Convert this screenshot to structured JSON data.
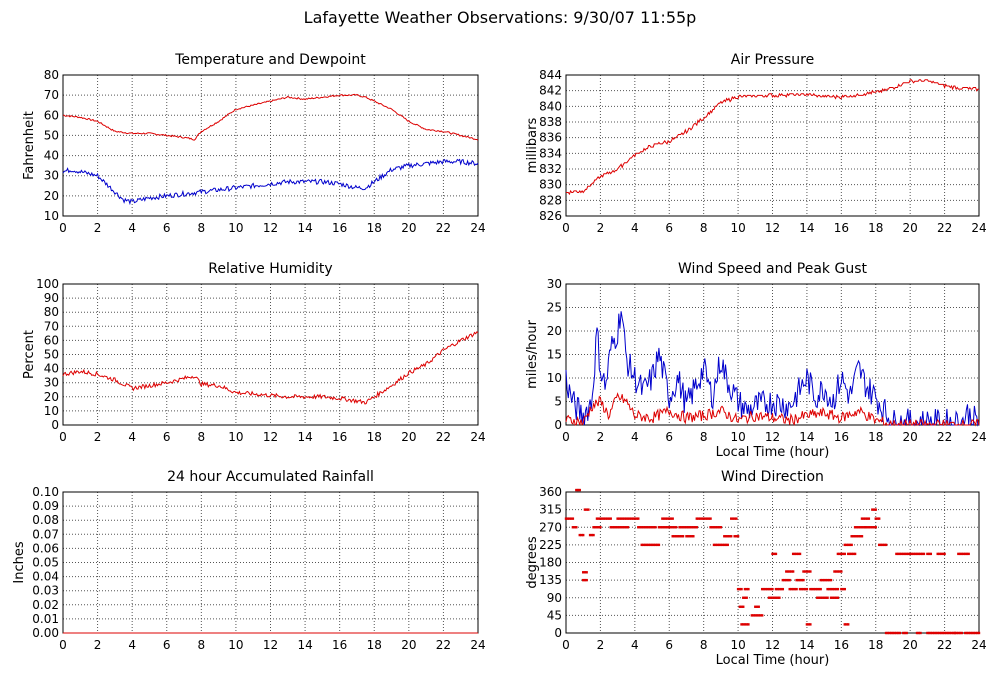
{
  "page": {
    "title": "Lafayette Weather Observations: 9/30/07 11:55p"
  },
  "chart_data": [
    {
      "id": "temp",
      "type": "line",
      "title": "Temperature and Dewpoint",
      "xlabel": "",
      "ylabel": "Fahrenheit",
      "xlim": [
        0,
        24
      ],
      "ylim": [
        10,
        80
      ],
      "xticks": [
        0,
        2,
        4,
        6,
        8,
        10,
        12,
        14,
        16,
        18,
        20,
        22,
        24
      ],
      "yticks": [
        10,
        20,
        30,
        40,
        50,
        60,
        70,
        80
      ],
      "grid": true,
      "series": [
        {
          "color": "#dd0000",
          "x": [
            0,
            1,
            2,
            3,
            4,
            5,
            6,
            7,
            7.6,
            8,
            9,
            10,
            11,
            12,
            13,
            14,
            15,
            16,
            17,
            17.5,
            18,
            19,
            20,
            21,
            22,
            23,
            24
          ],
          "y": [
            60,
            59,
            57,
            52,
            51,
            51,
            50,
            49,
            48,
            52,
            57,
            63,
            65,
            67,
            69,
            68,
            69,
            70,
            70,
            69,
            67,
            63,
            57,
            53,
            52,
            50,
            48
          ],
          "noise": 0.4
        },
        {
          "color": "#0000cc",
          "x": [
            0,
            0.5,
            1,
            1.5,
            2,
            3,
            3.5,
            4,
            5,
            6,
            7,
            8,
            9,
            10,
            11,
            12,
            13,
            14,
            15,
            16,
            17,
            17.5,
            18,
            19,
            20,
            21,
            22,
            23,
            24
          ],
          "y": [
            32,
            33,
            32,
            31,
            30,
            22,
            18,
            17,
            19,
            20,
            21,
            22,
            23,
            24,
            25,
            26,
            27,
            27,
            27,
            26,
            24,
            24,
            27,
            33,
            35,
            36,
            37,
            37,
            36
          ],
          "noise": 1.2
        }
      ]
    },
    {
      "id": "pressure",
      "type": "line",
      "title": "Air Pressure",
      "xlabel": "",
      "ylabel": "millibars",
      "xlim": [
        0,
        24
      ],
      "ylim": [
        826,
        844
      ],
      "xticks": [
        0,
        2,
        4,
        6,
        8,
        10,
        12,
        14,
        16,
        18,
        20,
        22,
        24
      ],
      "yticks": [
        826,
        828,
        830,
        832,
        834,
        836,
        838,
        840,
        842,
        844
      ],
      "grid": true,
      "series": [
        {
          "color": "#dd0000",
          "x": [
            0,
            1,
            2,
            3,
            4,
            5,
            6,
            7,
            8,
            9,
            10,
            11,
            12,
            13,
            14,
            15,
            16,
            17,
            18,
            19,
            20,
            21,
            22,
            23,
            24
          ],
          "y": [
            829,
            829.2,
            831,
            832,
            833.8,
            835,
            835.5,
            836.8,
            838.5,
            840.5,
            841.2,
            841.3,
            841.4,
            841.5,
            841.5,
            841.3,
            841.2,
            841.5,
            841.8,
            842.4,
            843.2,
            843.3,
            842.6,
            842.3,
            842.2
          ],
          "noise": 0.2,
          "step": true
        }
      ]
    },
    {
      "id": "humidity",
      "type": "line",
      "title": "Relative Humidity",
      "xlabel": "",
      "ylabel": "Percent",
      "xlim": [
        0,
        24
      ],
      "ylim": [
        0,
        100
      ],
      "xticks": [
        0,
        2,
        4,
        6,
        8,
        10,
        12,
        14,
        16,
        18,
        20,
        22,
        24
      ],
      "yticks": [
        0,
        10,
        20,
        30,
        40,
        50,
        60,
        70,
        80,
        90,
        100
      ],
      "grid": true,
      "series": [
        {
          "color": "#dd0000",
          "x": [
            0,
            1,
            2,
            3,
            4,
            5,
            6,
            7,
            7.6,
            8,
            9,
            10,
            11,
            12,
            13,
            14,
            15,
            16,
            17,
            17.5,
            18,
            19,
            20,
            21,
            22,
            23,
            24
          ],
          "y": [
            36,
            38,
            36,
            32,
            26,
            28,
            30,
            33,
            35,
            29,
            28,
            23,
            22,
            21,
            20,
            20,
            20,
            19,
            17,
            16,
            20,
            28,
            37,
            43,
            53,
            60,
            66
          ],
          "noise": 1.5
        }
      ]
    },
    {
      "id": "wind",
      "type": "line",
      "title": "Wind Speed and Peak Gust",
      "xlabel": "Local Time (hour)",
      "ylabel": "miles/hour",
      "xlim": [
        0,
        24
      ],
      "ylim": [
        0,
        30
      ],
      "xticks": [
        0,
        2,
        4,
        6,
        8,
        10,
        12,
        14,
        16,
        18,
        20,
        22,
        24
      ],
      "yticks": [
        0,
        5,
        10,
        15,
        20,
        25,
        30
      ],
      "grid": true,
      "series": [
        {
          "color": "#0000cc",
          "x": [
            0,
            0.2,
            0.5,
            1,
            1.5,
            1.8,
            2,
            2.3,
            2.6,
            3,
            3.2,
            3.5,
            4,
            4.5,
            5,
            5.4,
            6,
            6.5,
            7,
            7.5,
            8,
            8.5,
            9,
            9.3,
            10,
            10.5,
            11,
            12,
            13,
            14,
            14.5,
            15,
            15.5,
            16,
            16.5,
            17,
            17.5,
            18,
            18.5,
            19,
            20,
            21,
            22,
            23,
            23.3,
            24
          ],
          "y": [
            10,
            7,
            4,
            2,
            5,
            20,
            12,
            8,
            16,
            20,
            25,
            14,
            10,
            7,
            10,
            15,
            6,
            10,
            4,
            8,
            12,
            6,
            14,
            10,
            5,
            3,
            4,
            5,
            4,
            10,
            6,
            8,
            5,
            10,
            6,
            12,
            8,
            6,
            3,
            0.5,
            0.5,
            0.5,
            0.5,
            0.5,
            2.5,
            0.3
          ],
          "noise": 3
        },
        {
          "color": "#dd0000",
          "x": [
            0,
            0.5,
            1,
            1.5,
            2,
            2.5,
            3,
            3.5,
            4,
            5,
            6,
            7,
            8,
            9,
            10,
            11,
            12,
            13,
            14,
            15,
            16,
            17,
            18,
            19,
            24
          ],
          "y": [
            1,
            1,
            0.5,
            4,
            5,
            2,
            6,
            5,
            2,
            1.5,
            3,
            1.5,
            2,
            3,
            1,
            2,
            1.5,
            1,
            2,
            2.5,
            1.5,
            3,
            1,
            0,
            0
          ],
          "noise": 1.2
        }
      ]
    },
    {
      "id": "rain",
      "type": "line",
      "title": "24 hour Accumulated Rainfall",
      "xlabel": "",
      "ylabel": "Inches",
      "xlim": [
        0,
        24
      ],
      "ylim": [
        0,
        0.1
      ],
      "xticks": [
        0,
        2,
        4,
        6,
        8,
        10,
        12,
        14,
        16,
        18,
        20,
        22,
        24
      ],
      "yticks": [
        "0.00",
        "0.01",
        "0.02",
        "0.03",
        "0.04",
        "0.05",
        "0.06",
        "0.07",
        "0.08",
        "0.09",
        "0.10"
      ],
      "grid": true,
      "series": [
        {
          "color": "#dd0000",
          "x": [
            0,
            24
          ],
          "y": [
            0,
            0
          ],
          "noise": 0
        }
      ]
    },
    {
      "id": "direction",
      "type": "scatter",
      "title": "Wind Direction",
      "xlabel": "Local Time (hour)",
      "ylabel": "degrees",
      "xlim": [
        0,
        24
      ],
      "ylim": [
        0,
        360
      ],
      "xticks": [
        0,
        2,
        4,
        6,
        8,
        10,
        12,
        14,
        16,
        18,
        20,
        22,
        24
      ],
      "yticks": [
        0,
        45,
        90,
        135,
        180,
        225,
        270,
        315,
        360
      ],
      "grid": true,
      "series": [
        {
          "color": "#dd0000",
          "segments": [
            {
              "x0": 0,
              "x1": 0.4,
              "y": 292
            },
            {
              "x0": 0.4,
              "x1": 0.6,
              "y": 270
            },
            {
              "x0": 0.6,
              "x1": 0.8,
              "y": 365
            },
            {
              "x0": 0.8,
              "x1": 1.0,
              "y": 250
            },
            {
              "x0": 1.0,
              "x1": 1.2,
              "y": 155
            },
            {
              "x0": 1.0,
              "x1": 1.2,
              "y": 135
            },
            {
              "x0": 1.1,
              "x1": 1.3,
              "y": 315
            },
            {
              "x0": 1.4,
              "x1": 1.6,
              "y": 250
            },
            {
              "x0": 1.6,
              "x1": 2.0,
              "y": 270
            },
            {
              "x0": 1.8,
              "x1": 2.6,
              "y": 292
            },
            {
              "x0": 2.6,
              "x1": 3.6,
              "y": 270
            },
            {
              "x0": 3.0,
              "x1": 4.2,
              "y": 292
            },
            {
              "x0": 4.2,
              "x1": 5.2,
              "y": 270
            },
            {
              "x0": 4.4,
              "x1": 5.4,
              "y": 225
            },
            {
              "x0": 5.4,
              "x1": 6.4,
              "y": 270
            },
            {
              "x0": 5.6,
              "x1": 6.2,
              "y": 292
            },
            {
              "x0": 6.2,
              "x1": 6.8,
              "y": 247
            },
            {
              "x0": 6.6,
              "x1": 7.6,
              "y": 270
            },
            {
              "x0": 7.0,
              "x1": 7.4,
              "y": 247
            },
            {
              "x0": 7.6,
              "x1": 8.4,
              "y": 292
            },
            {
              "x0": 8.4,
              "x1": 9.0,
              "y": 270
            },
            {
              "x0": 8.6,
              "x1": 9.4,
              "y": 225
            },
            {
              "x0": 9.2,
              "x1": 9.6,
              "y": 247
            },
            {
              "x0": 9.6,
              "x1": 9.9,
              "y": 292
            },
            {
              "x0": 9.8,
              "x1": 10.0,
              "y": 247
            },
            {
              "x0": 10.0,
              "x1": 10.2,
              "y": 112
            },
            {
              "x0": 10.1,
              "x1": 10.3,
              "y": 67
            },
            {
              "x0": 10.2,
              "x1": 10.6,
              "y": 22
            },
            {
              "x0": 10.3,
              "x1": 10.5,
              "y": 90
            },
            {
              "x0": 10.4,
              "x1": 10.6,
              "y": 112
            },
            {
              "x0": 10.8,
              "x1": 11.4,
              "y": 45
            },
            {
              "x0": 11.0,
              "x1": 11.2,
              "y": 67
            },
            {
              "x0": 11.4,
              "x1": 12.0,
              "y": 112
            },
            {
              "x0": 11.8,
              "x1": 12.4,
              "y": 90
            },
            {
              "x0": 12.0,
              "x1": 12.2,
              "y": 202
            },
            {
              "x0": 12.2,
              "x1": 12.6,
              "y": 112
            },
            {
              "x0": 12.6,
              "x1": 13.0,
              "y": 135
            },
            {
              "x0": 12.8,
              "x1": 13.2,
              "y": 157
            },
            {
              "x0": 13.0,
              "x1": 13.4,
              "y": 112
            },
            {
              "x0": 13.2,
              "x1": 13.6,
              "y": 202
            },
            {
              "x0": 13.4,
              "x1": 13.8,
              "y": 135
            },
            {
              "x0": 13.6,
              "x1": 14.0,
              "y": 112
            },
            {
              "x0": 13.8,
              "x1": 14.2,
              "y": 157
            },
            {
              "x0": 14.0,
              "x1": 14.2,
              "y": 22
            },
            {
              "x0": 14.2,
              "x1": 14.8,
              "y": 112
            },
            {
              "x0": 14.6,
              "x1": 15.2,
              "y": 90
            },
            {
              "x0": 14.8,
              "x1": 15.4,
              "y": 135
            },
            {
              "x0": 15.2,
              "x1": 15.8,
              "y": 112
            },
            {
              "x0": 15.4,
              "x1": 15.8,
              "y": 90
            },
            {
              "x0": 15.6,
              "x1": 16.0,
              "y": 157
            },
            {
              "x0": 15.8,
              "x1": 16.2,
              "y": 202
            },
            {
              "x0": 16.0,
              "x1": 16.2,
              "y": 112
            },
            {
              "x0": 16.2,
              "x1": 16.4,
              "y": 22
            },
            {
              "x0": 16.2,
              "x1": 16.6,
              "y": 225
            },
            {
              "x0": 16.4,
              "x1": 16.8,
              "y": 202
            },
            {
              "x0": 16.6,
              "x1": 17.2,
              "y": 247
            },
            {
              "x0": 16.8,
              "x1": 17.4,
              "y": 270
            },
            {
              "x0": 17.2,
              "x1": 17.6,
              "y": 292
            },
            {
              "x0": 17.4,
              "x1": 18.0,
              "y": 270
            },
            {
              "x0": 17.8,
              "x1": 18.0,
              "y": 315
            },
            {
              "x0": 18.0,
              "x1": 18.2,
              "y": 292
            },
            {
              "x0": 18.2,
              "x1": 18.6,
              "y": 225
            },
            {
              "x0": 18.6,
              "x1": 19.4,
              "y": 0
            },
            {
              "x0": 19.2,
              "x1": 20.8,
              "y": 202
            },
            {
              "x0": 19.6,
              "x1": 19.8,
              "y": 0
            },
            {
              "x0": 20.4,
              "x1": 20.6,
              "y": 0
            },
            {
              "x0": 21.0,
              "x1": 21.2,
              "y": 202
            },
            {
              "x0": 21.0,
              "x1": 22.6,
              "y": 0
            },
            {
              "x0": 21.6,
              "x1": 22.0,
              "y": 202
            },
            {
              "x0": 22.6,
              "x1": 23.0,
              "y": 0
            },
            {
              "x0": 22.8,
              "x1": 23.4,
              "y": 202
            },
            {
              "x0": 23.2,
              "x1": 24.0,
              "y": 0
            }
          ]
        }
      ]
    }
  ]
}
